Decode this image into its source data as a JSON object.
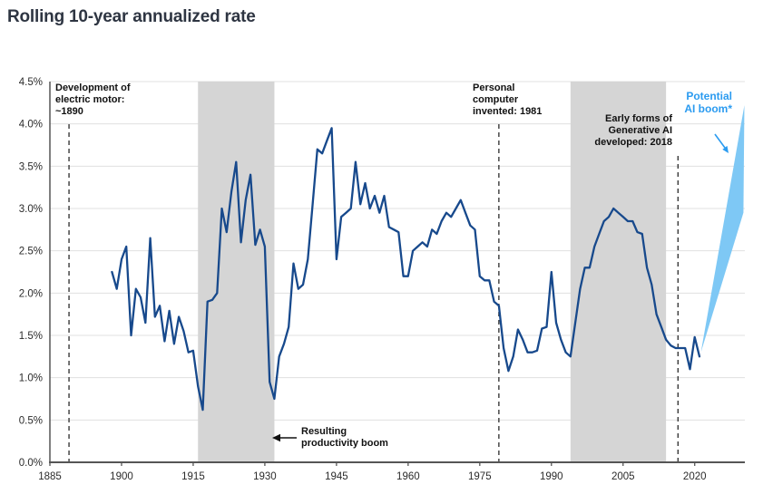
{
  "page": {
    "title": "Rolling 10-year annualized rate"
  },
  "colors": {
    "line": "#17498c",
    "wedge": "#7ec8f5",
    "ai_label": "#2b9bf0",
    "band": "#d5d5d5",
    "grid": "#e0e0e0",
    "axis": "#555555",
    "dashed": "#2a2a2a",
    "arrow": "#111111",
    "tick_label": "#2b2b2b",
    "background": "#ffffff"
  },
  "annotations": {
    "electric_motor": "Development of\nelectric motor:\n~1890",
    "personal_computer": "Personal\ncomputer\ninvented: 1981",
    "generative_ai": "Early forms of\nGenerative AI\ndeveloped: 2018",
    "productivity_boom": "Resulting\nproductivity boom",
    "ai_boom": "Potential\nAI boom*"
  },
  "chart_data": {
    "type": "line",
    "title": "Rolling 10-year annualized rate",
    "xlabel": "",
    "ylabel": "",
    "xlim": [
      1885,
      2030.5
    ],
    "ylim": [
      0,
      4.5
    ],
    "x_ticks": [
      1885,
      1900,
      1915,
      1930,
      1945,
      1960,
      1975,
      1990,
      2005,
      2020
    ],
    "y_ticks": [
      0,
      0.5,
      1,
      1.5,
      2,
      2.5,
      3,
      3.5,
      4,
      4.5
    ],
    "y_tick_labels": [
      "0.0%",
      "0.5%",
      "1.0%",
      "1.5%",
      "2.0%",
      "2.5%",
      "3.0%",
      "3.5%",
      "4.0%",
      "4.5%"
    ],
    "grid": "horizontal",
    "legend": "none",
    "shaded_bands": [
      {
        "x0": 1916,
        "x1": 1932,
        "note": "post electric motor productivity boom"
      },
      {
        "x0": 1994,
        "x1": 2014,
        "note": "post personal computer productivity boom"
      }
    ],
    "event_lines": [
      {
        "x": 1889,
        "label": "Development of electric motor: ~1890"
      },
      {
        "x": 1979,
        "label": "Personal computer invented: 1981"
      },
      {
        "x": 2016.5,
        "label": "Early forms of Generative AI developed: 2018"
      }
    ],
    "series": [
      {
        "name": "Rolling 10-year annualized productivity growth rate",
        "color": "#17498c",
        "x": [
          1898,
          1899,
          1900,
          1901,
          1902,
          1903,
          1904,
          1905,
          1906,
          1907,
          1908,
          1909,
          1910,
          1911,
          1912,
          1913,
          1914,
          1915,
          1916,
          1917,
          1918,
          1919,
          1920,
          1921,
          1922,
          1923,
          1924,
          1925,
          1926,
          1927,
          1928,
          1929,
          1930,
          1931,
          1932,
          1933,
          1934,
          1935,
          1936,
          1937,
          1938,
          1939,
          1940,
          1941,
          1942,
          1943,
          1944,
          1945,
          1946,
          1947,
          1948,
          1949,
          1950,
          1951,
          1952,
          1953,
          1954,
          1955,
          1956,
          1957,
          1958,
          1959,
          1960,
          1961,
          1962,
          1963,
          1964,
          1965,
          1966,
          1967,
          1968,
          1969,
          1970,
          1971,
          1972,
          1973,
          1974,
          1975,
          1976,
          1977,
          1978,
          1979,
          1980,
          1981,
          1982,
          1983,
          1984,
          1985,
          1986,
          1987,
          1988,
          1989,
          1990,
          1991,
          1992,
          1993,
          1994,
          1995,
          1996,
          1997,
          1998,
          1999,
          2000,
          2001,
          2002,
          2003,
          2004,
          2005,
          2006,
          2007,
          2008,
          2009,
          2010,
          2011,
          2012,
          2013,
          2014,
          2015,
          2016,
          2017,
          2018,
          2019,
          2020,
          2021
        ],
        "y": [
          2.25,
          2.05,
          2.4,
          2.55,
          1.5,
          2.05,
          1.95,
          1.65,
          2.65,
          1.72,
          1.85,
          1.43,
          1.79,
          1.4,
          1.72,
          1.55,
          1.3,
          1.32,
          0.9,
          0.62,
          1.9,
          1.92,
          2.0,
          3.0,
          2.72,
          3.2,
          3.55,
          2.6,
          3.1,
          3.4,
          2.57,
          2.75,
          2.55,
          0.95,
          0.75,
          1.25,
          1.4,
          1.6,
          2.35,
          2.05,
          2.1,
          2.4,
          3.05,
          3.7,
          3.65,
          3.8,
          3.95,
          2.4,
          2.9,
          2.95,
          3.0,
          3.55,
          3.05,
          3.3,
          3.0,
          3.15,
          2.95,
          3.15,
          2.78,
          2.75,
          2.72,
          2.2,
          2.2,
          2.5,
          2.55,
          2.6,
          2.55,
          2.75,
          2.7,
          2.85,
          2.95,
          2.9,
          3.0,
          3.1,
          2.95,
          2.8,
          2.75,
          2.2,
          2.15,
          2.15,
          1.9,
          1.85,
          1.35,
          1.08,
          1.25,
          1.57,
          1.45,
          1.3,
          1.3,
          1.32,
          1.58,
          1.6,
          2.25,
          1.65,
          1.45,
          1.3,
          1.25,
          1.65,
          2.05,
          2.3,
          2.3,
          2.55,
          2.7,
          2.85,
          2.9,
          3.0,
          2.95,
          2.9,
          2.85,
          2.85,
          2.72,
          2.7,
          2.3,
          2.1,
          1.75,
          1.6,
          1.45,
          1.38,
          1.35,
          1.35,
          1.35,
          1.1,
          1.48,
          1.25
        ]
      }
    ],
    "projection": {
      "name": "Potential AI boom",
      "color": "#7ec8f5",
      "apex": [
        2021.3,
        1.3
      ],
      "top": [
        2030.4,
        4.22
      ],
      "bottom": [
        2030.2,
        2.95
      ]
    }
  }
}
